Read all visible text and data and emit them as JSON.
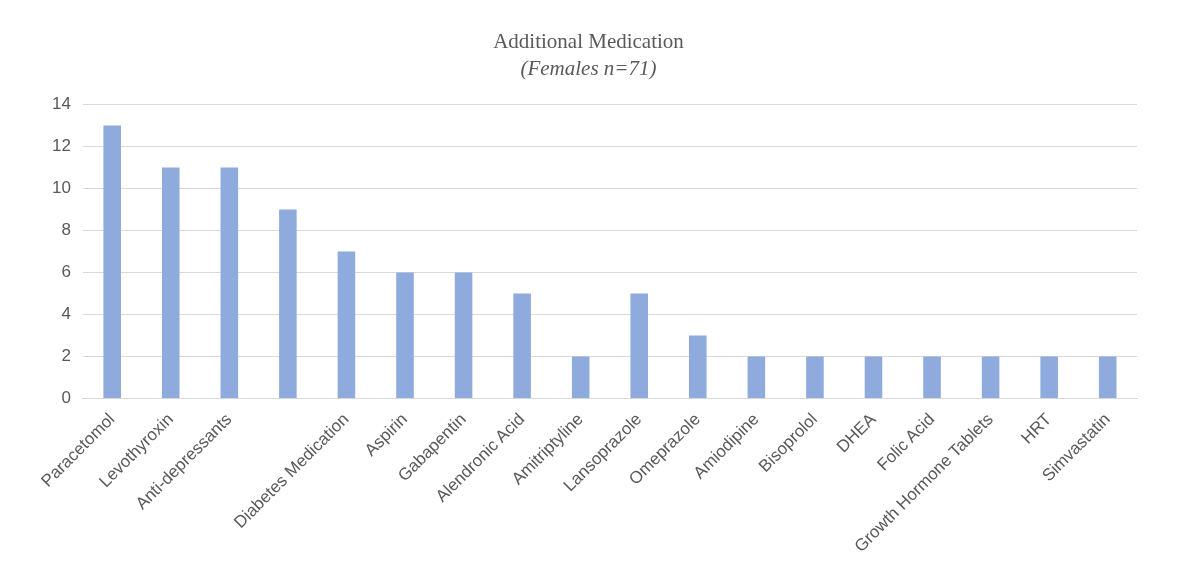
{
  "chart_data": {
    "type": "bar",
    "title": "Additional Medication",
    "subtitle": "(Females n=71)",
    "categories": [
      "Paracetomol",
      "Levothyroxin",
      "Anti-depressants",
      null,
      "Diabetes Medication",
      "Aspirin",
      "Gabapentin",
      "Alendronic Acid",
      "Amitriptyline",
      "Lansoprazole",
      "Omeprazole",
      "Amiodipine",
      "Bisoprolol",
      "DHEA",
      "Folic Acid",
      "Growth Hormone Tablets",
      "HRT",
      "Simvastatin"
    ],
    "values": [
      13,
      11,
      11,
      9,
      7,
      6,
      6,
      5,
      2,
      5,
      3,
      2,
      2,
      2,
      2,
      2,
      2,
      2
    ],
    "color": "#8faadc",
    "ylim": [
      0,
      14
    ],
    "yticks": [
      0,
      2,
      4,
      6,
      8,
      10,
      12,
      14
    ],
    "grid": "y",
    "legend": false
  }
}
